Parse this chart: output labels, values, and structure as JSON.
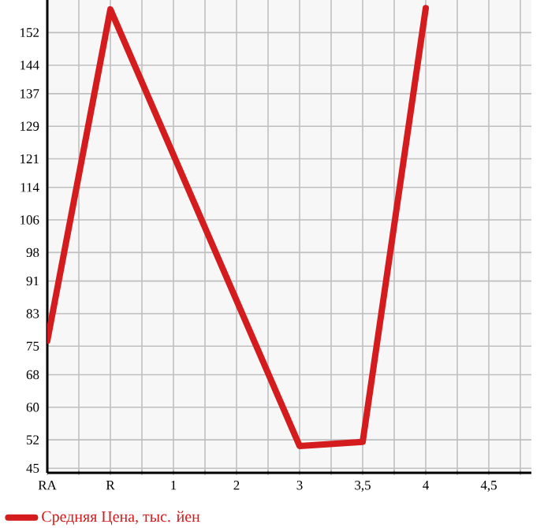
{
  "chart_data": {
    "type": "line",
    "categories": [
      "RA",
      "R",
      "1",
      "2",
      "3",
      "3,5",
      "4",
      "4,5"
    ],
    "series": [
      {
        "name": "Средняя Цена, тыс. йен",
        "color": "#d41c1e",
        "values": [
          76.3,
          157.7,
          null,
          null,
          50.5,
          51.5,
          158,
          null
        ]
      }
    ],
    "ylim": [
      43.9,
      160
    ],
    "yticks": [
      45,
      52,
      60,
      68,
      75,
      83,
      91,
      98,
      106,
      114,
      121,
      129,
      137,
      144,
      152
    ],
    "grid": true,
    "legend": "bottom",
    "marker": "none",
    "line_style": "solid"
  }
}
